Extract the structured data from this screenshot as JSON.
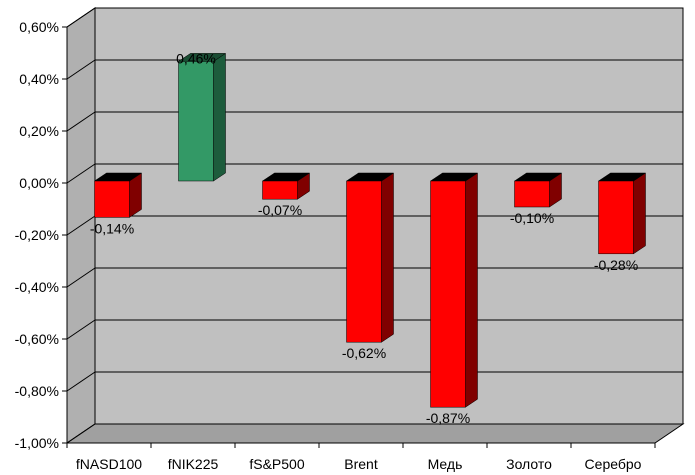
{
  "chart_data": {
    "type": "bar",
    "title": "",
    "xlabel": "",
    "ylabel": "",
    "categories": [
      "fNASD100",
      "fNIK225",
      "fS&P500",
      "Brent",
      "Медь",
      "Золото",
      "Серебро"
    ],
    "values": [
      -0.14,
      0.46,
      -0.07,
      -0.62,
      -0.87,
      -0.1,
      -0.28
    ],
    "value_labels": [
      "-0,14%",
      "0,46%",
      "-0,07%",
      "-0,62%",
      "-0,87%",
      "-0,10%",
      "-0,28%"
    ],
    "ylim": [
      -1.0,
      0.6
    ],
    "yticks": [
      0.6,
      0.4,
      0.2,
      0.0,
      -0.2,
      -0.4,
      -0.6,
      -0.8,
      -1.0
    ],
    "ytick_labels": [
      "0,60%",
      "0,40%",
      "0,20%",
      "0,00%",
      "-0,20%",
      "-0,40%",
      "-0,60%",
      "-0,80%",
      "-1,00%"
    ],
    "grid": true,
    "legend": "none",
    "colors": {
      "negative_front": "#ff0000",
      "negative_side": "#800000",
      "negative_top": "#000000",
      "positive_front": "#339966",
      "positive_side": "#1d5c3c",
      "positive_top": "#1a4d33",
      "wall": "#c0c0c0",
      "wall_side": "#b0b0b0",
      "floor": "#a0a0a0"
    }
  }
}
